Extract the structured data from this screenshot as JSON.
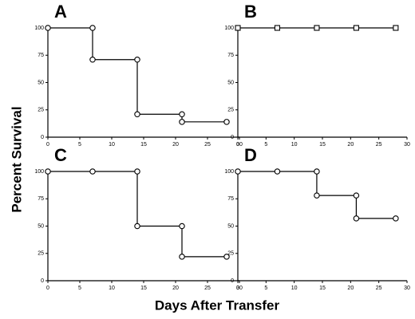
{
  "ylabel": "Percent Survival",
  "xlabel": "Days After Transfer",
  "chart_data": [
    {
      "type": "line",
      "title": "A",
      "x": [
        0,
        7,
        7,
        14,
        14,
        21,
        21,
        28
      ],
      "values": [
        100,
        100,
        71,
        71,
        21,
        21,
        14,
        14
      ],
      "marker": "circle",
      "color": "#000000",
      "xlim": [
        0,
        30
      ],
      "xticks": [
        0,
        5,
        10,
        15,
        20,
        25,
        30
      ],
      "ylim": [
        0,
        100
      ],
      "yticks": [
        0,
        25,
        50,
        75,
        100
      ]
    },
    {
      "type": "line",
      "title": "B",
      "x": [
        0,
        7,
        14,
        21,
        28
      ],
      "values": [
        100,
        100,
        100,
        100,
        100
      ],
      "marker": "square",
      "color": "#000000",
      "xlim": [
        0,
        30
      ],
      "xticks": [
        0,
        5,
        10,
        15,
        20,
        25,
        30
      ],
      "ylim": [
        0,
        100
      ],
      "yticks": [
        0,
        25,
        50,
        75,
        100
      ]
    },
    {
      "type": "line",
      "title": "C",
      "x": [
        0,
        7,
        14,
        14,
        21,
        21,
        28
      ],
      "values": [
        100,
        100,
        100,
        50,
        50,
        22,
        22
      ],
      "marker": "circle",
      "color": "#000000",
      "xlim": [
        0,
        30
      ],
      "xticks": [
        0,
        5,
        10,
        15,
        20,
        25,
        30
      ],
      "ylim": [
        0,
        100
      ],
      "yticks": [
        0,
        25,
        50,
        75,
        100
      ]
    },
    {
      "type": "line",
      "title": "D",
      "x": [
        0,
        7,
        14,
        14,
        21,
        21,
        28
      ],
      "values": [
        100,
        100,
        100,
        78,
        78,
        57,
        57
      ],
      "marker": "circle",
      "color": "#000000",
      "xlim": [
        0,
        30
      ],
      "xticks": [
        0,
        5,
        10,
        15,
        20,
        25,
        30
      ],
      "ylim": [
        0,
        100
      ],
      "yticks": [
        0,
        25,
        50,
        75,
        100
      ]
    }
  ]
}
